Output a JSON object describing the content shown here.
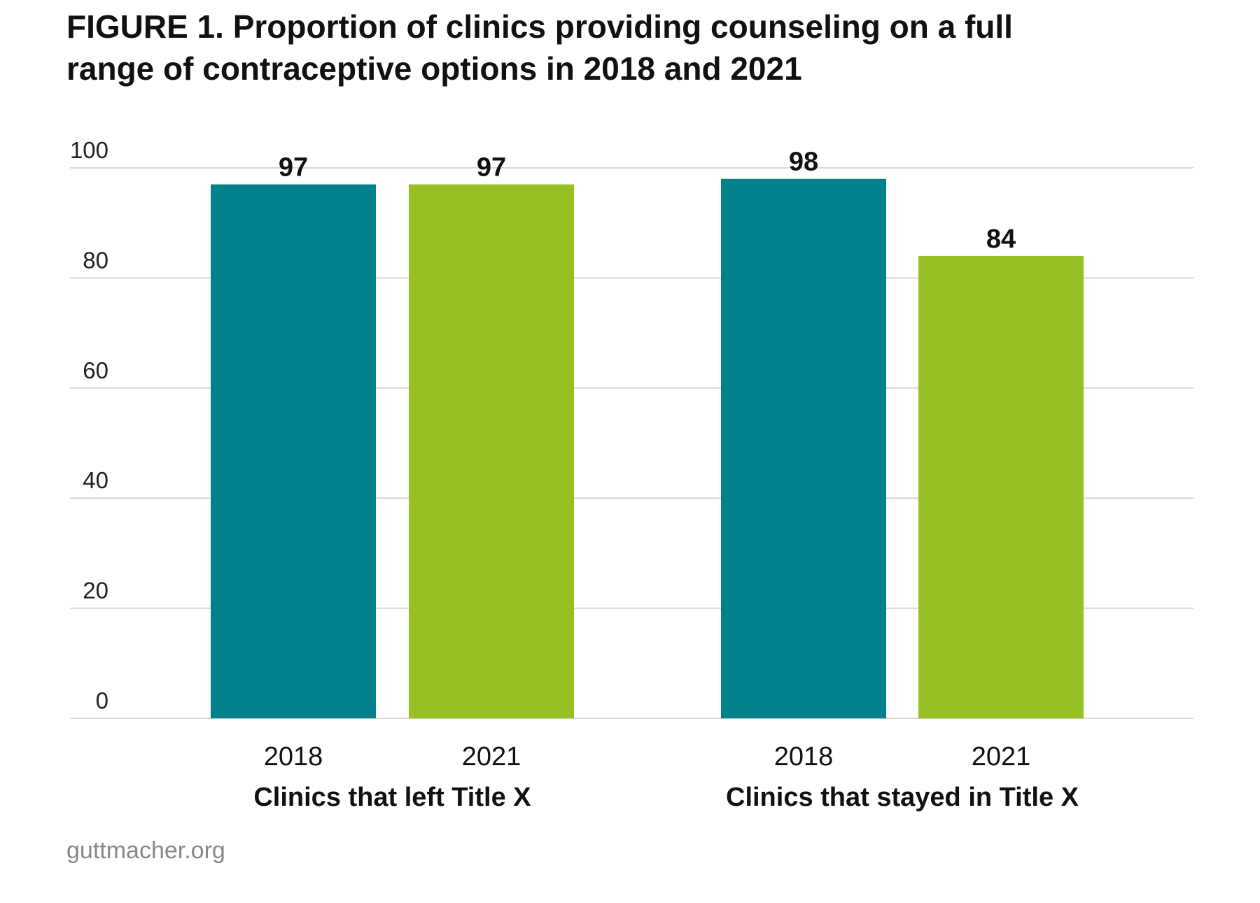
{
  "title_lines": [
    "FIGURE 1. Proportion of clinics providing counseling on a full",
    "range of contraceptive options in 2018 and 2021"
  ],
  "source": "guttmacher.org",
  "colors": {
    "2018": "#00818C",
    "2021": "#97C023",
    "grid": "#DDD8D0"
  },
  "chart_data": {
    "type": "bar",
    "title": "FIGURE 1. Proportion of clinics providing counseling on a full range of contraceptive options in 2018 and 2021",
    "groups": [
      "Clinics that left Title X",
      "Clinics that stayed in Title X"
    ],
    "categories": [
      "2018",
      "2021"
    ],
    "series": [
      {
        "name": "2018",
        "values": [
          97,
          98
        ]
      },
      {
        "name": "2021",
        "values": [
          97,
          84
        ]
      }
    ],
    "yticks": [
      0,
      20,
      40,
      60,
      80,
      100
    ],
    "ylim": [
      0,
      100
    ],
    "grid": true,
    "xlabel": "",
    "ylabel": ""
  }
}
